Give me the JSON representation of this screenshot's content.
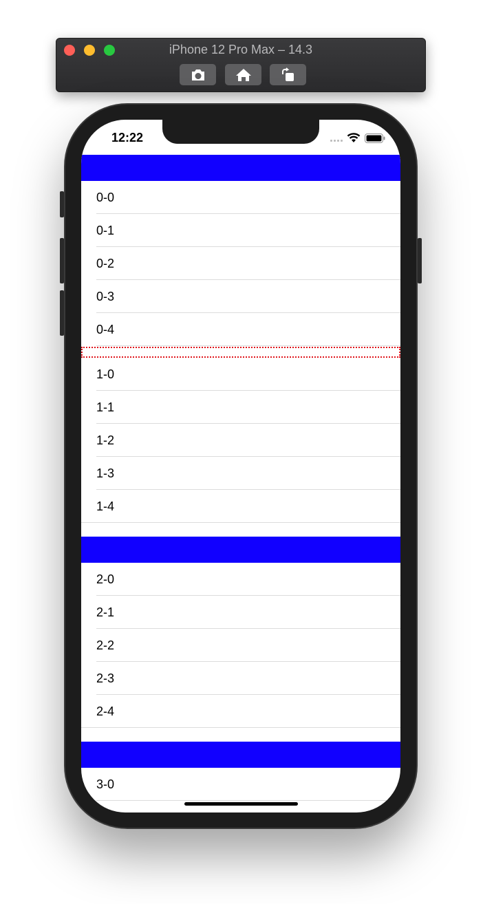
{
  "simulator": {
    "title": "iPhone 12 Pro Max – 14.3",
    "buttons": [
      "screenshot",
      "home",
      "rotate"
    ]
  },
  "status_bar": {
    "time": "12:22"
  },
  "colors": {
    "section_header": "#1100ff",
    "debug_border": "#e0141b"
  },
  "sections": [
    {
      "rows": [
        "0-0",
        "0-1",
        "0-2",
        "0-3",
        "0-4"
      ]
    },
    {
      "rows": [
        "1-0",
        "1-1",
        "1-2",
        "1-3",
        "1-4"
      ]
    },
    {
      "rows": [
        "2-0",
        "2-1",
        "2-2",
        "2-3",
        "2-4"
      ]
    },
    {
      "rows": [
        "3-0"
      ]
    }
  ]
}
